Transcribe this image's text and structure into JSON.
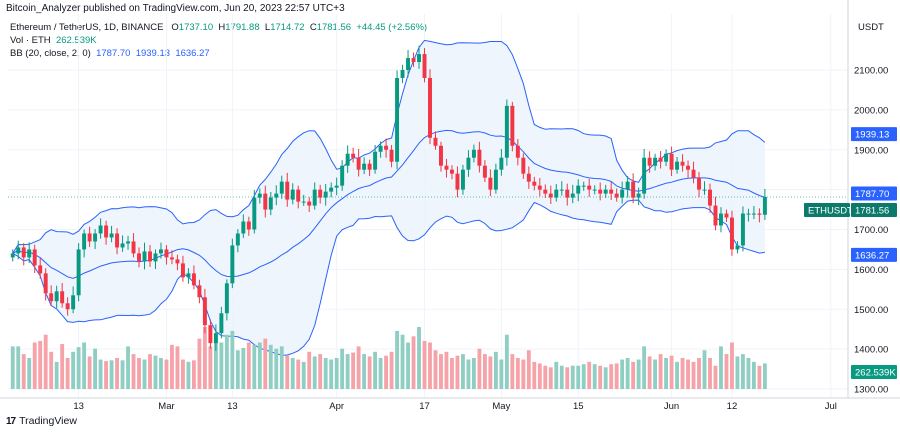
{
  "header": {
    "published": "Bitcoin_Analyzer published on TradingView.com, Jun 20, 2023 22:57 UTC+3"
  },
  "legend": {
    "symbol": "Ethereum / TetherUS, 1D, BINANCE",
    "o_label": "O",
    "o_value": "1737.10",
    "h_label": "H",
    "h_value": "1791.88",
    "l_label": "L",
    "l_value": "1714.72",
    "c_label": "C",
    "c_value": "1781.56",
    "change": "+44.45 (+2.56%)",
    "vol_label": "Vol · ETH",
    "vol_value": "262.539K",
    "bb_label": "BB (20, close, 2, 0)",
    "bb_basis": "1787.70",
    "bb_upper": "1939.13",
    "bb_lower": "1636.27"
  },
  "footer": {
    "brand": "TradingView"
  },
  "colors": {
    "up": "#089981",
    "down": "#f23645",
    "vol_up": "#8fcec3",
    "vol_down": "#f5a2a8",
    "bb_line": "#2962ff",
    "bb_fill": "#eaf2fb",
    "symbol_tag": "#0b7a6a"
  },
  "chart_data": {
    "type": "candlestick",
    "currency_label": "USDT",
    "ylim": [
      1300,
      2200
    ],
    "y_ticks": [
      "1300.00",
      "1400.00",
      "1500.00",
      "1600.00",
      "1700.00",
      "1800.00",
      "1900.00",
      "2000.00",
      "2100.00"
    ],
    "x_ticks": [
      {
        "i": 12,
        "label": "13"
      },
      {
        "i": 28,
        "label": "Mar"
      },
      {
        "i": 40,
        "label": "13"
      },
      {
        "i": 59,
        "label": "Apr"
      },
      {
        "i": 75,
        "label": "17"
      },
      {
        "i": 89,
        "label": "May"
      },
      {
        "i": 103,
        "label": "15"
      },
      {
        "i": 120,
        "label": "Jun"
      },
      {
        "i": 131,
        "label": "12"
      },
      {
        "i": 149,
        "label": "Jul"
      }
    ],
    "x_axis_slots": 153,
    "last_index": 137,
    "bb_upper_label": "1939.13",
    "bb_basis_label": "1787.70",
    "bb_lower_label": "1636.27",
    "last_close_label": "1781.56",
    "volume_label": "262.539K",
    "symbol_tag": "ETHUSDT",
    "close": [
      1640,
      1655,
      1630,
      1650,
      1610,
      1590,
      1540,
      1520,
      1545,
      1515,
      1500,
      1535,
      1650,
      1690,
      1670,
      1690,
      1710,
      1680,
      1690,
      1655,
      1665,
      1670,
      1640,
      1620,
      1645,
      1620,
      1640,
      1650,
      1630,
      1625,
      1615,
      1580,
      1590,
      1560,
      1530,
      1460,
      1415,
      1440,
      1490,
      1565,
      1660,
      1690,
      1720,
      1700,
      1780,
      1790,
      1750,
      1780,
      1790,
      1820,
      1775,
      1800,
      1770,
      1770,
      1760,
      1800,
      1780,
      1795,
      1805,
      1810,
      1860,
      1890,
      1880,
      1850,
      1865,
      1850,
      1895,
      1910,
      1900,
      1870,
      2080,
      2100,
      2130,
      2120,
      2140,
      2080,
      1930,
      1910,
      1860,
      1850,
      1840,
      1800,
      1850,
      1880,
      1900,
      1860,
      1830,
      1800,
      1850,
      1880,
      2010,
      1910,
      1880,
      1840,
      1820,
      1810,
      1800,
      1790,
      1780,
      1800,
      1800,
      1780,
      1790,
      1810,
      1810,
      1800,
      1800,
      1790,
      1800,
      1790,
      1780,
      1800,
      1820,
      1780,
      1790,
      1880,
      1860,
      1880,
      1870,
      1890,
      1850,
      1870,
      1860,
      1850,
      1830,
      1800,
      1800,
      1760,
      1710,
      1740,
      1730,
      1650,
      1660,
      1740,
      1740,
      1740,
      1737,
      1781.56
    ],
    "volume": [
      55,
      55,
      45,
      40,
      60,
      62,
      70,
      48,
      35,
      58,
      40,
      48,
      54,
      60,
      42,
      52,
      38,
      36,
      37,
      40,
      37,
      55,
      45,
      40,
      38,
      45,
      43,
      40,
      38,
      57,
      55,
      38,
      35,
      37,
      65,
      80,
      55,
      70,
      60,
      70,
      75,
      50,
      53,
      60,
      57,
      60,
      65,
      57,
      52,
      55,
      43,
      40,
      38,
      35,
      48,
      42,
      45,
      40,
      38,
      40,
      52,
      45,
      47,
      55,
      45,
      42,
      48,
      40,
      43,
      48,
      75,
      70,
      60,
      68,
      80,
      62,
      60,
      50,
      45,
      48,
      40,
      43,
      45,
      38,
      40,
      52,
      45,
      42,
      48,
      38,
      70,
      45,
      40,
      38,
      50,
      35,
      33,
      30,
      28,
      35,
      30,
      28,
      30,
      30,
      32,
      35,
      32,
      30,
      28,
      32,
      33,
      38,
      40,
      35,
      38,
      55,
      42,
      38,
      45,
      40,
      43,
      35,
      40,
      38,
      35,
      40,
      50,
      40,
      30,
      55,
      45,
      60,
      42,
      45,
      40,
      35,
      30,
      33
    ]
  }
}
